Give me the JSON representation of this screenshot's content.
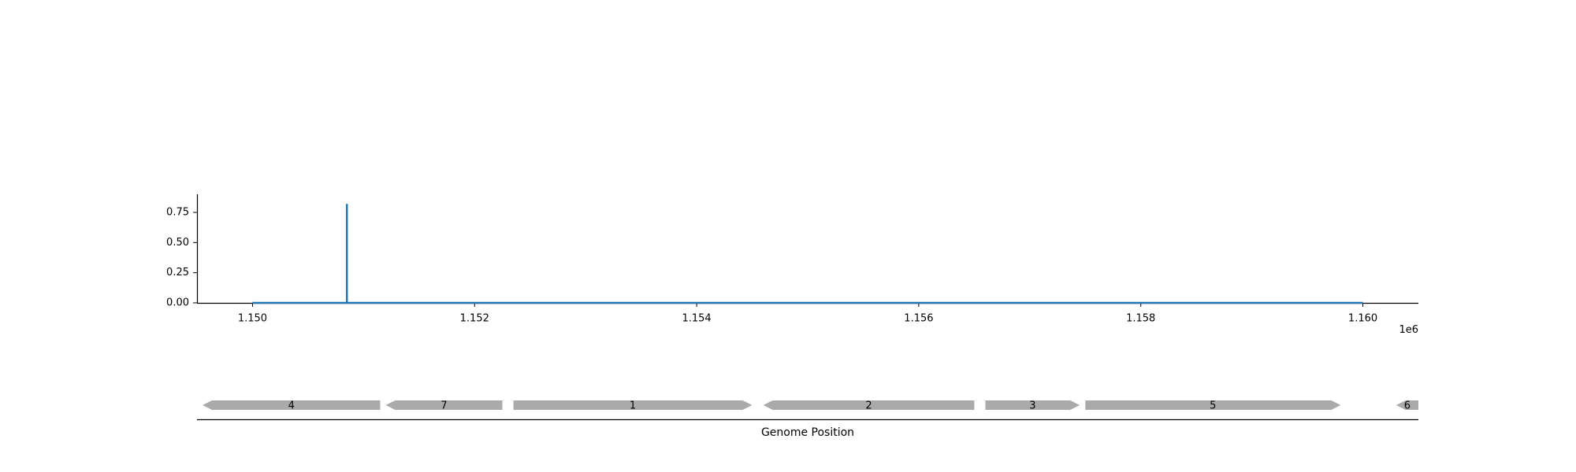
{
  "chart_data": [
    {
      "type": "line",
      "x_range": [
        1150000,
        1160000
      ],
      "xlim": [
        1149500,
        1160500
      ],
      "ylim": [
        0,
        0.9
      ],
      "x_ticks": [
        1150000,
        1152000,
        1154000,
        1156000,
        1158000,
        1160000
      ],
      "x_tick_labels": [
        "1.150",
        "1.152",
        "1.154",
        "1.156",
        "1.158",
        "1.160"
      ],
      "x_offset_label": "1e6",
      "y_ticks": [
        0,
        0.25,
        0.5,
        0.75
      ],
      "y_tick_labels": [
        "0.00",
        "0.25",
        "0.50",
        "0.75"
      ],
      "series": [
        {
          "color": "#1f77b4",
          "baseline": 0,
          "peaks": [
            {
              "x": 1150850,
              "y": 0.82
            }
          ]
        }
      ],
      "grid": false
    },
    {
      "type": "gene-track",
      "xlabel": "Genome Position",
      "feature_color": "#aaaaaa",
      "features": [
        {
          "label": "4",
          "start": 1149550,
          "end": 1151150,
          "strand": "-"
        },
        {
          "label": "7",
          "start": 1151200,
          "end": 1152250,
          "strand": "-"
        },
        {
          "label": "1",
          "start": 1152350,
          "end": 1154500,
          "strand": "+"
        },
        {
          "label": "2",
          "start": 1154600,
          "end": 1156500,
          "strand": "-"
        },
        {
          "label": "3",
          "start": 1156600,
          "end": 1157450,
          "strand": "+"
        },
        {
          "label": "5",
          "start": 1157500,
          "end": 1159800,
          "strand": "+"
        },
        {
          "label": "6",
          "start": 1160300,
          "end": 1160500,
          "strand": "-"
        }
      ]
    }
  ]
}
